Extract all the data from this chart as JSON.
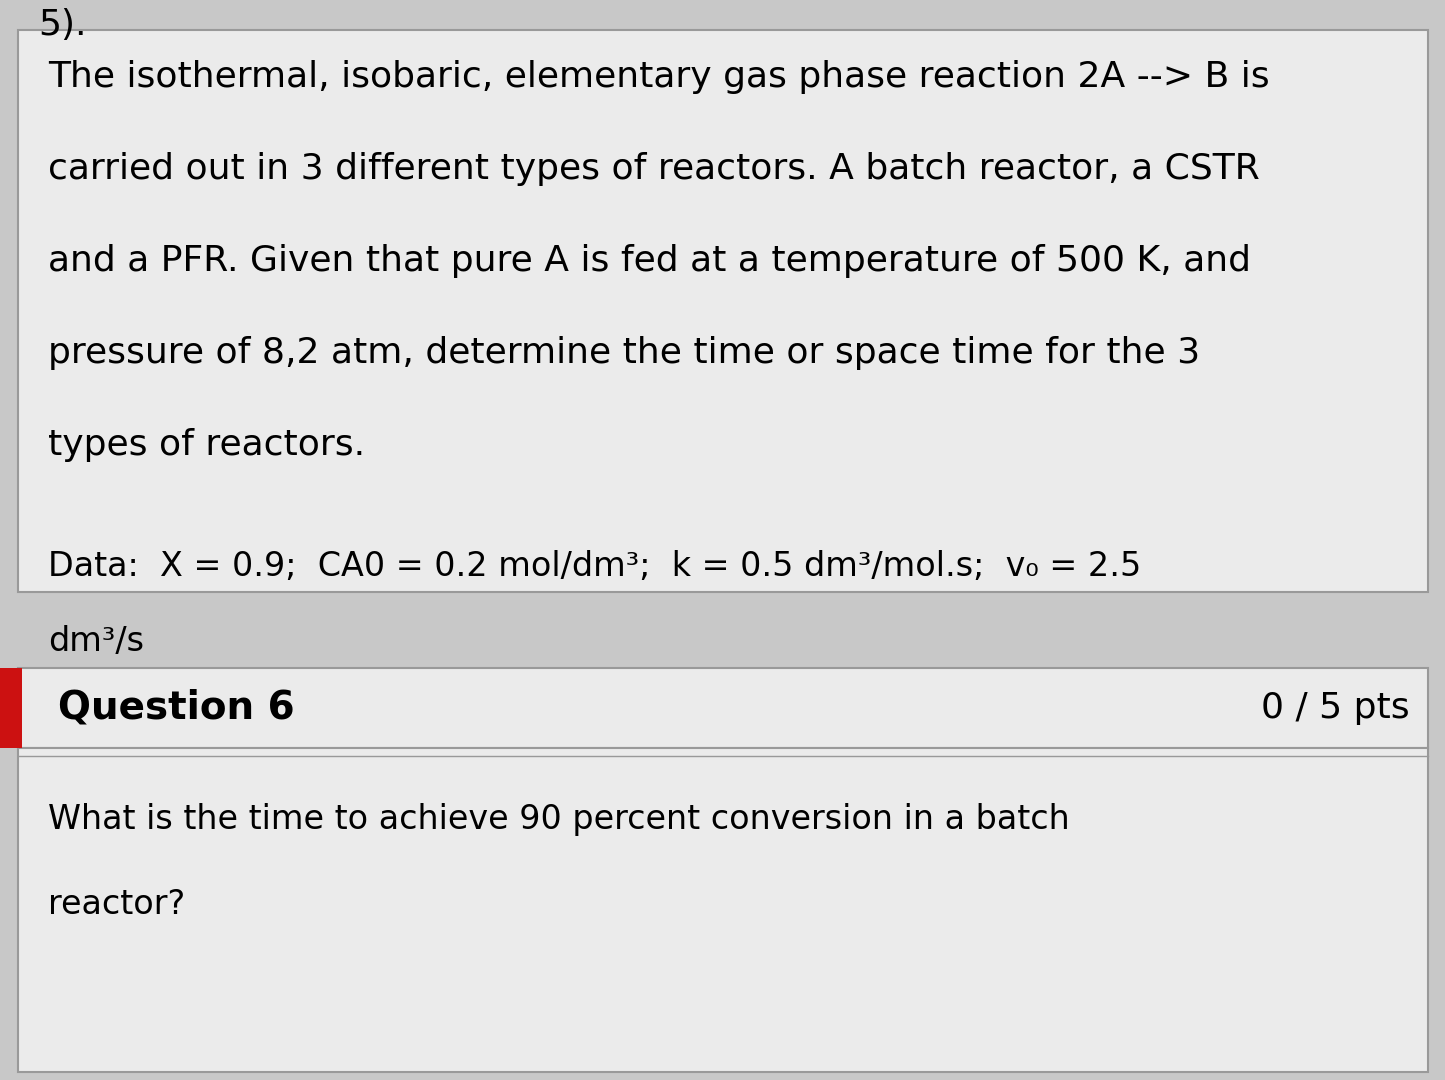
{
  "bg_color": "#c8c8c8",
  "top_box_bg": "#ebebeb",
  "top_box_border": "#999999",
  "bottom_box_bg": "#ebebeb",
  "bottom_box_border": "#999999",
  "question_bar_bg": "#ebebeb",
  "question_bar_border": "#999999",
  "red_tag_color": "#cc1111",
  "top_number": "5).",
  "paragraph_lines": [
    "The isothermal, isobaric, elementary gas phase reaction 2A --> B is",
    "carried out in 3 different types of reactors. A batch reactor, a CSTR",
    "and a PFR. Given that pure A is fed at a temperature of 500 K, and",
    "pressure of 8,2 atm, determine the time or space time for the 3",
    "types of reactors."
  ],
  "data_line1": "Data:  X = 0.9;  CA0 = 0.2 mol/dm³;  k = 0.5 dm³/mol.s;  v₀ = 2.5",
  "data_line2": "dm³/s",
  "question_label": "Question 6",
  "points_label": "0 / 5 pts",
  "q6_line1": "What is the time to achieve 90 percent conversion in a batch",
  "q6_line2": "reactor?",
  "font_size_para": 26,
  "font_size_data": 24,
  "font_size_question": 28,
  "font_size_pts": 26,
  "font_size_q6": 24,
  "font_size_number": 26
}
